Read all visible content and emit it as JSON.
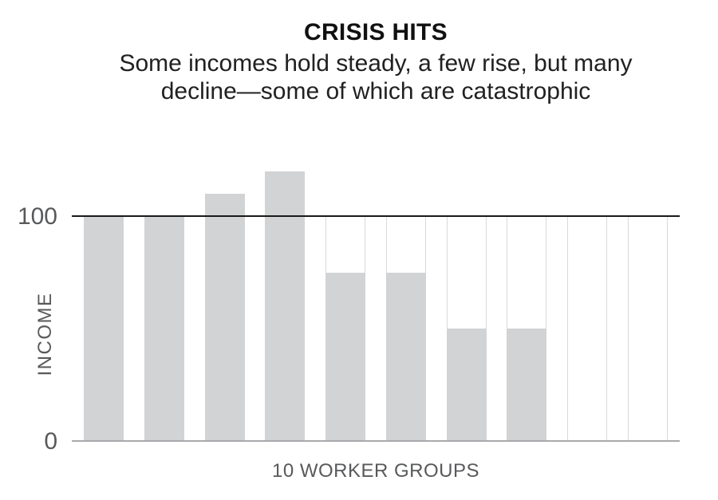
{
  "chart_data": {
    "type": "bar",
    "title": "CRISIS HITS",
    "subtitle": "Some incomes hold steady, a few rise, but many decline—some of which are catastrophic",
    "subtitle_lines": [
      "Some incomes hold steady, a few rise, but many",
      "decline—some of which are catastrophic"
    ],
    "values": [
      100,
      100,
      110,
      120,
      75,
      75,
      50,
      50,
      0,
      0
    ],
    "xlabel": "10 WORKER GROUPS",
    "ylabel": "INCOME",
    "yticks": [
      0,
      100
    ],
    "ytick_labels": [
      "0",
      "100"
    ],
    "ylim": [
      0,
      128
    ],
    "reference_line": 100,
    "grid": false,
    "legend": false,
    "empty_bar_style": "outline-only",
    "bar_color": "#d1d3d4",
    "frame_color": "#d9d9db",
    "reference_line_color": "#1a1a1a",
    "axis_line_color": "#a7a9ac",
    "text_color": "#58595b",
    "title_color": "#111111"
  }
}
